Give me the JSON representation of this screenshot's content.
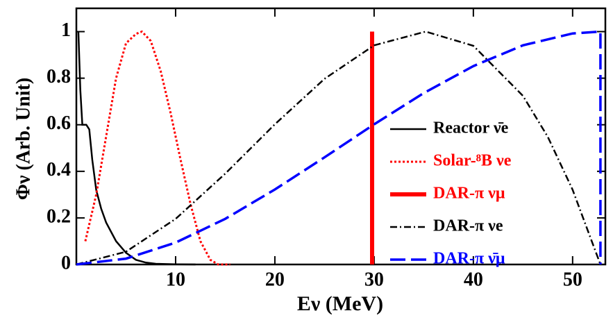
{
  "chart_data": {
    "type": "line",
    "xlabel": "Eν (MeV)",
    "ylabel": "Φν (Arb. Unit)",
    "xlim": [
      0,
      53.3
    ],
    "ylim": [
      0,
      1.1
    ],
    "xticks": [
      10,
      20,
      30,
      40,
      50
    ],
    "yticks": [
      0,
      0.2,
      0.4,
      0.6,
      0.8,
      1
    ],
    "legend": "right",
    "series": [
      {
        "name": "Reactor ν̄e",
        "color": "#000000",
        "linestyle": "solid",
        "x": [
          0.2,
          0.4,
          0.6,
          1.0,
          1.3,
          1.6,
          2.0,
          2.5,
          3.0,
          4.0,
          5.0,
          6.0,
          7.0,
          8.0,
          10.0,
          12.0
        ],
        "values": [
          1.0,
          0.75,
          0.6,
          0.6,
          0.58,
          0.45,
          0.32,
          0.24,
          0.18,
          0.1,
          0.05,
          0.02,
          0.008,
          0.003,
          0.001,
          0
        ]
      },
      {
        "name": "Solar-⁸B νe",
        "color": "#ff0000",
        "linestyle": "dotted",
        "x": [
          0.9,
          2.0,
          3.0,
          4.0,
          5.0,
          6.0,
          6.6,
          7.5,
          8.5,
          9.5,
          10.5,
          11.5,
          12.5,
          13.5,
          14.3,
          15.5
        ],
        "values": [
          0.1,
          0.3,
          0.55,
          0.8,
          0.95,
          0.99,
          1.0,
          0.96,
          0.83,
          0.65,
          0.45,
          0.26,
          0.1,
          0.02,
          0,
          0
        ]
      },
      {
        "name": "DAR-π νμ",
        "color": "#ff0000",
        "linestyle": "solid-thick",
        "x": [
          29.8,
          29.8
        ],
        "values": [
          0,
          1
        ]
      },
      {
        "name": "DAR-π νe",
        "color": "#000000",
        "linestyle": "dashdot",
        "x": [
          0,
          5,
          10,
          15,
          20,
          25,
          30,
          35.2,
          40,
          45,
          47.5,
          50,
          52.8
        ],
        "values": [
          0,
          0.055,
          0.196,
          0.39,
          0.602,
          0.797,
          0.941,
          1.0,
          0.939,
          0.724,
          0.548,
          0.321,
          0
        ]
      },
      {
        "name": "DAR-π ν̄μ",
        "color": "#0000ff",
        "linestyle": "dashed",
        "x": [
          0,
          5,
          10,
          15,
          20,
          25,
          30,
          35,
          40,
          45,
          50,
          52.8,
          52.8
        ],
        "values": [
          0,
          0.025,
          0.094,
          0.196,
          0.322,
          0.46,
          0.602,
          0.736,
          0.852,
          0.941,
          0.992,
          1.0,
          0
        ]
      }
    ]
  }
}
